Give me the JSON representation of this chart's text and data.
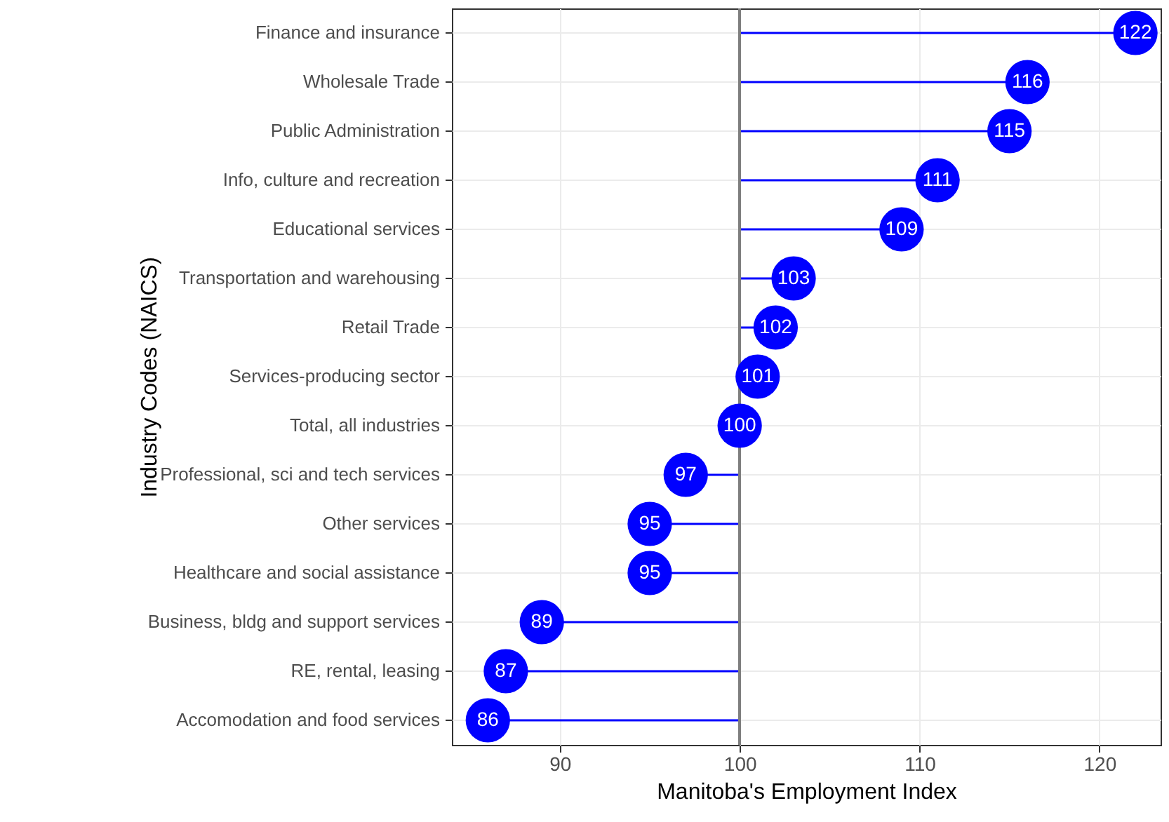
{
  "chart_data": {
    "type": "lollipop",
    "orientation": "horizontal",
    "xlabel": "Manitoba's Employment Index",
    "ylabel": "Industry Codes (NAICS)",
    "categories": [
      "Finance and insurance",
      "Wholesale Trade",
      "Public Administration",
      "Info, culture and recreation",
      "Educational services",
      "Transportation and warehousing",
      "Retail Trade",
      "Services-producing sector",
      "Total, all industries",
      "Professional, sci and tech services",
      "Other services",
      "Healthcare and social assistance",
      "Business, bldg and support services",
      "RE, rental, leasing",
      "Accomodation and food services"
    ],
    "values": [
      122,
      116,
      115,
      111,
      109,
      103,
      102,
      101,
      100,
      97,
      95,
      95,
      89,
      87,
      86
    ],
    "color": "#0000ff",
    "marker": "circle",
    "data_labels": true,
    "xlim": [
      84,
      123.4
    ],
    "xticks": [
      90,
      100,
      110,
      120
    ],
    "grid": true,
    "ref_lines": [
      {
        "axis": "x",
        "value": 100,
        "color": "#7f7f7f"
      }
    ]
  }
}
